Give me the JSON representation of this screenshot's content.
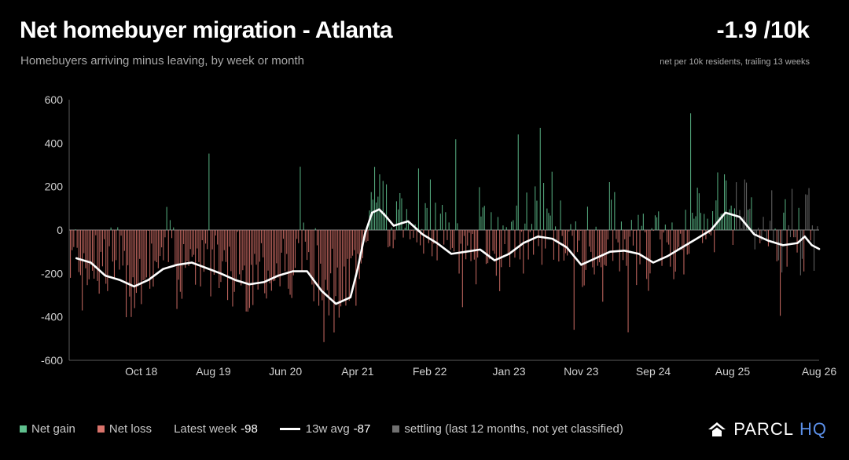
{
  "header": {
    "title": "Net homebuyer migration - Atlanta",
    "subtitle": "Homebuyers arriving minus leaving, by week or month",
    "kpi_value": "-1.9 /10k",
    "kpi_note": "net per 10k residents, trailing 13 weeks"
  },
  "legend": {
    "gain_label": "Net gain",
    "loss_label": "Net loss",
    "latest_label": "Latest week",
    "latest_value": "-98",
    "avg_label": "13w avg",
    "avg_value": "-87",
    "settling_label": "settling (last 12 months, not yet classified)"
  },
  "brand": {
    "name_a": "PARCL",
    "name_b": "HQ"
  },
  "colors": {
    "gain": "#5fc08e",
    "loss": "#d9736b",
    "settling": "#707070",
    "avg_line": "#ffffff",
    "brand_accent": "#5b8fe8"
  },
  "chart_data": {
    "type": "bar",
    "ylim": [
      -600,
      600
    ],
    "y_ticks": [
      600,
      400,
      200,
      0,
      -200,
      -400,
      -600
    ],
    "x_tick_labels": [
      "Oct 18",
      "Aug 19",
      "Jun 20",
      "Apr 21",
      "Feb 22",
      "Jan 23",
      "Nov 23",
      "Sep 24",
      "Aug 25",
      "Aug 26"
    ],
    "x_tick_dates": [
      "2018-10",
      "2019-08",
      "2020-06",
      "2021-04",
      "2022-02",
      "2023-01",
      "2023-11",
      "2024-09",
      "2025-08",
      "2026-08"
    ],
    "x_range": [
      "2017-12",
      "2026-08"
    ],
    "series": [
      {
        "name": "13w avg",
        "kind": "line",
        "points": [
          [
            "2018-01",
            -130
          ],
          [
            "2018-03",
            -150
          ],
          [
            "2018-05",
            -210
          ],
          [
            "2018-07",
            -230
          ],
          [
            "2018-09",
            -260
          ],
          [
            "2018-11",
            -230
          ],
          [
            "2019-01",
            -180
          ],
          [
            "2019-03",
            -160
          ],
          [
            "2019-05",
            -150
          ],
          [
            "2019-07",
            -175
          ],
          [
            "2019-09",
            -200
          ],
          [
            "2019-11",
            -230
          ],
          [
            "2020-01",
            -250
          ],
          [
            "2020-03",
            -240
          ],
          [
            "2020-05",
            -210
          ],
          [
            "2020-07",
            -190
          ],
          [
            "2020-09",
            -190
          ],
          [
            "2020-11",
            -280
          ],
          [
            "2021-01",
            -340
          ],
          [
            "2021-03",
            -310
          ],
          [
            "2021-04",
            -180
          ],
          [
            "2021-05",
            -20
          ],
          [
            "2021-06",
            80
          ],
          [
            "2021-07",
            95
          ],
          [
            "2021-08",
            60
          ],
          [
            "2021-09",
            20
          ],
          [
            "2021-11",
            40
          ],
          [
            "2022-01",
            -20
          ],
          [
            "2022-03",
            -60
          ],
          [
            "2022-05",
            -110
          ],
          [
            "2022-07",
            -100
          ],
          [
            "2022-09",
            -90
          ],
          [
            "2022-11",
            -140
          ],
          [
            "2023-01",
            -110
          ],
          [
            "2023-03",
            -60
          ],
          [
            "2023-05",
            -30
          ],
          [
            "2023-07",
            -40
          ],
          [
            "2023-09",
            -80
          ],
          [
            "2023-11",
            -160
          ],
          [
            "2024-01",
            -130
          ],
          [
            "2024-03",
            -100
          ],
          [
            "2024-05",
            -95
          ],
          [
            "2024-07",
            -110
          ],
          [
            "2024-09",
            -150
          ],
          [
            "2024-11",
            -120
          ],
          [
            "2025-01",
            -80
          ],
          [
            "2025-03",
            -40
          ],
          [
            "2025-05",
            0
          ],
          [
            "2025-07",
            80
          ],
          [
            "2025-09",
            60
          ],
          [
            "2025-11",
            -20
          ],
          [
            "2026-01",
            -50
          ],
          [
            "2026-03",
            -70
          ],
          [
            "2026-05",
            -60
          ],
          [
            "2026-06",
            -30
          ],
          [
            "2026-07",
            -70
          ],
          [
            "2026-08",
            -87
          ]
        ]
      }
    ]
  }
}
